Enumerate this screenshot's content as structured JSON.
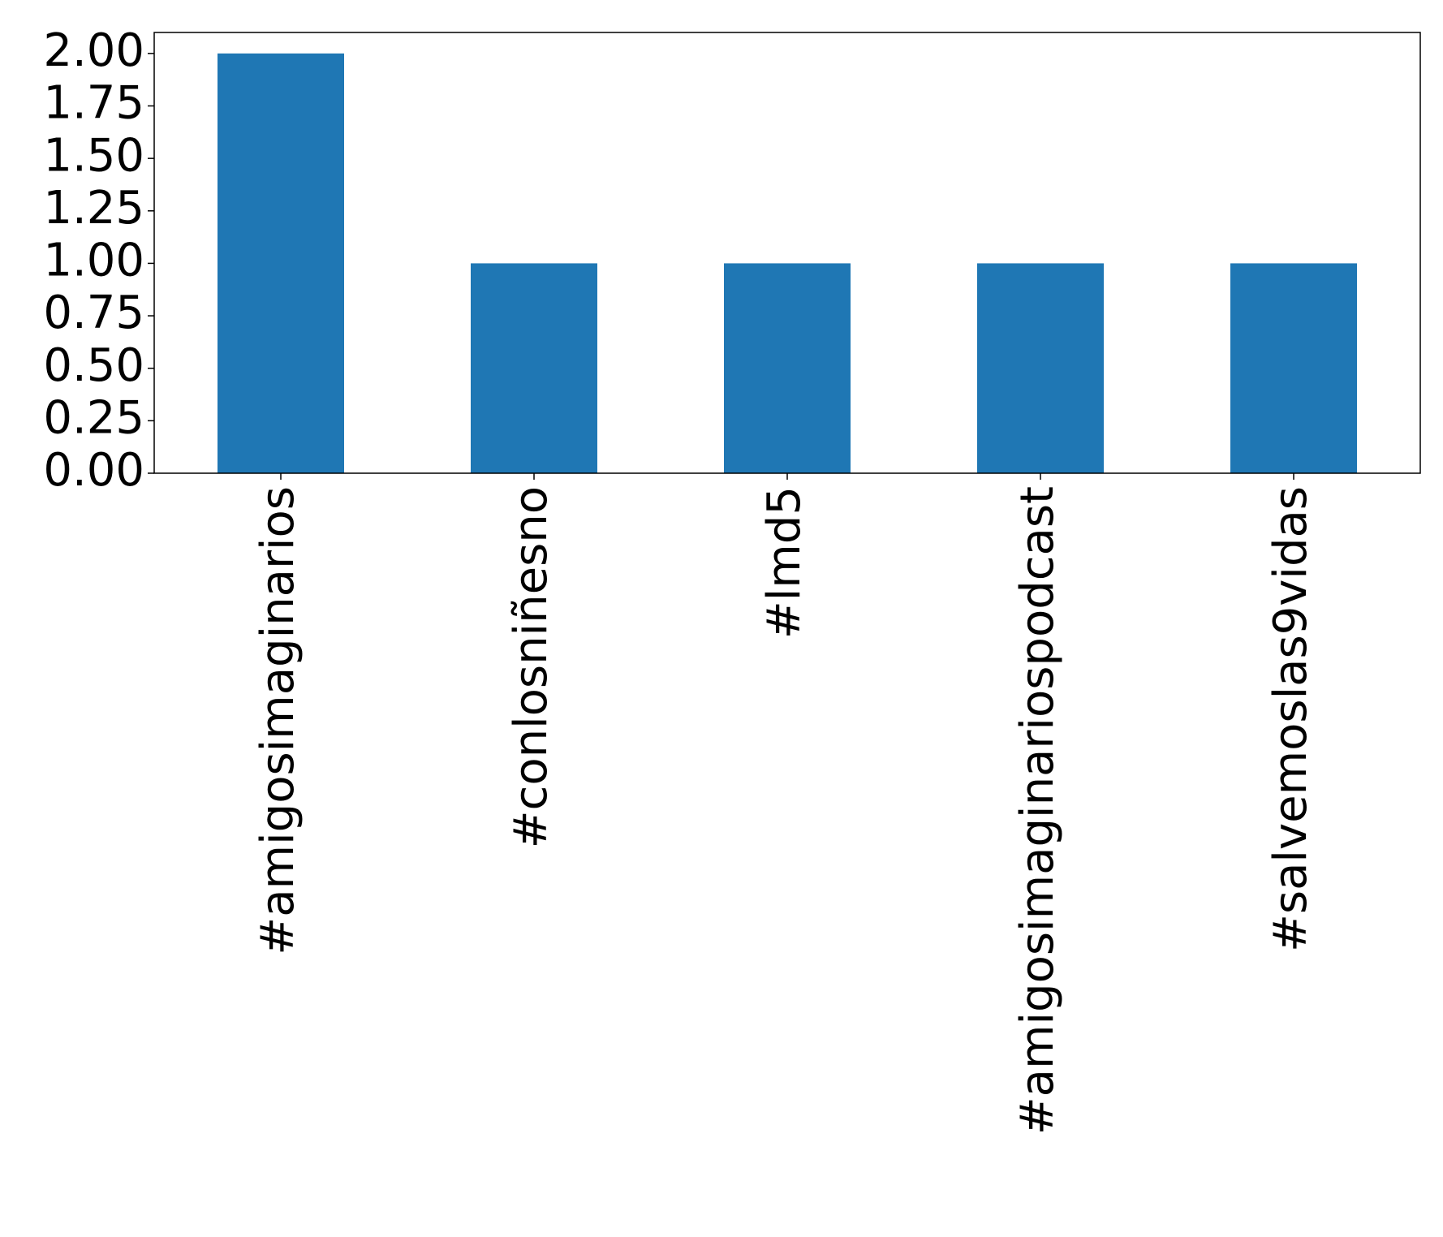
{
  "chart_data": {
    "type": "bar",
    "title": "",
    "xlabel": "",
    "ylabel": "",
    "categories": [
      "#amigosimaginarios",
      "#conlosniñesno",
      "#lmd5",
      "#amigosimaginariospodcast",
      "#salvemoslas9vidas"
    ],
    "values": [
      2,
      1,
      1,
      1,
      1
    ],
    "ylim": [
      0,
      2.1
    ],
    "yticks": [
      "0.00",
      "0.25",
      "0.50",
      "0.75",
      "1.00",
      "1.25",
      "1.50",
      "1.75",
      "2.00"
    ],
    "grid": false,
    "legend": false,
    "bar_color": "#1f77b4"
  }
}
